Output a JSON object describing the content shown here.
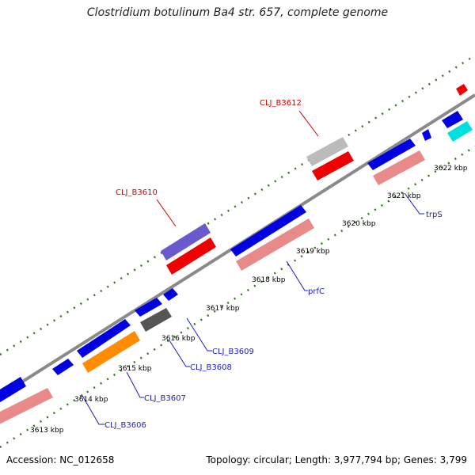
{
  "title": "Clostridium botulinum Ba4 str. 657, complete genome",
  "accession": "Accession: NC_012658",
  "topology": "Topology: circular; Length: 3,977,794 bp; Genes: 3,799",
  "kbp_labels": [
    "3613 kbp",
    "3614 kbp",
    "3615 kbp",
    "3616 kbp",
    "3617 kbp",
    "3618 kbp",
    "3619 kbp",
    "3620 kbp",
    "3621 kbp",
    "3622 kbp"
  ],
  "gene_labels": [
    "CLJ_B3606",
    "CLJ_B3607",
    "CLJ_B3608",
    "CLJ_B3609",
    "prfC",
    "trpS",
    "CLJ_B3610",
    "CLJ_B3612"
  ],
  "colors": {
    "backbone": "#8a8a8a",
    "tick": "#2a7a1a",
    "blue": "#0000e0",
    "pink": "#e88a8a",
    "red": "#ee0000",
    "orange": "#ff8c00",
    "dark_gray": "#555555",
    "light_gray": "#bbbbbb",
    "purple": "#6a5acd",
    "cyan": "#00e0e0",
    "label_red": "#d40000",
    "label_blue": "#1a1acc"
  }
}
